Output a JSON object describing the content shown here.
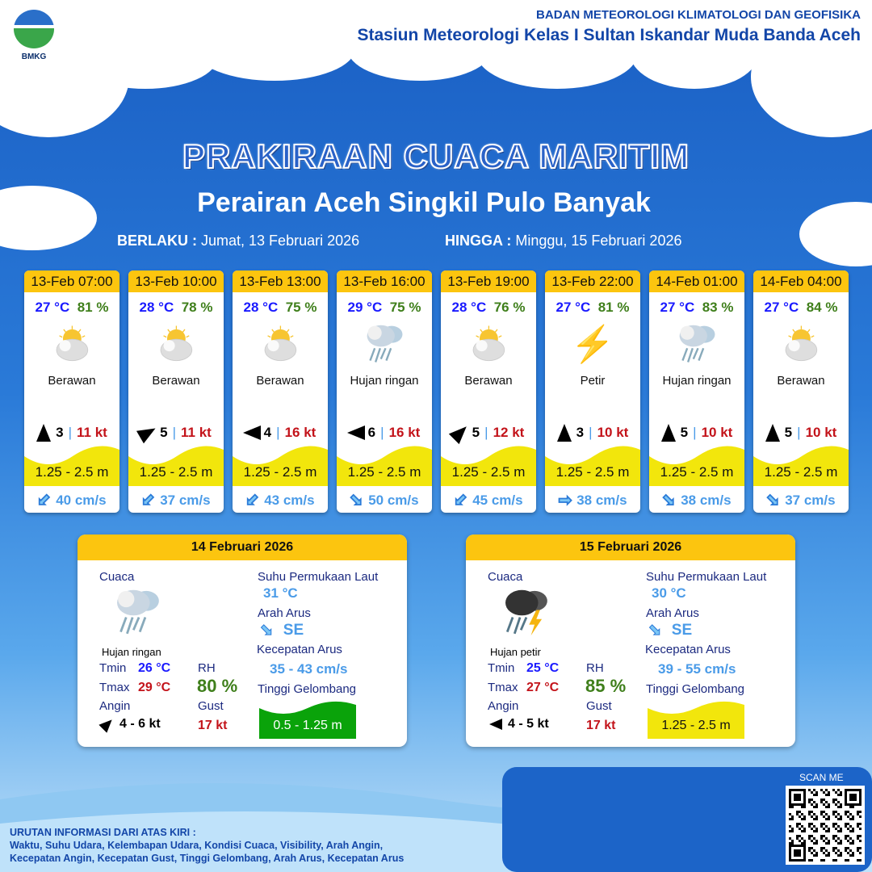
{
  "header": {
    "logo_text": "BMKG",
    "org": "BADAN METEOROLOGI KLIMATOLOGI DAN GEOFISIKA",
    "station": "Stasiun Meteorologi Kelas I Sultan Iskandar Muda Banda Aceh"
  },
  "title": "PRAKIRAAN CUACA MARITIM",
  "subtitle": "Perairan Aceh Singkil Pulo Banyak",
  "validity": {
    "from_label": "BERLAKU :",
    "from": "Jumat, 13 Februari 2026",
    "to_label": "HINGGA :",
    "to": "Minggu, 15 Februari 2026"
  },
  "colors": {
    "header_yellow": "#fcc50f",
    "wave_yellow": "#f2e60c",
    "wave_green": "#0aa30a",
    "temp": "#1a1aff",
    "rh": "#3f7f1b",
    "gust": "#c3131a"
  },
  "forecasts": [
    {
      "time": "13-Feb 07:00",
      "temp": "27 °C",
      "rh": "81 %",
      "icon": "partly-cloudy-icon",
      "cond": "Berawan",
      "wind_dir_deg": 180,
      "wind": "3",
      "gust": "11 kt",
      "wave": "1.25 - 2.5 m",
      "cur_dir_deg": 225,
      "current": "40 cm/s"
    },
    {
      "time": "13-Feb 10:00",
      "temp": "28 °C",
      "rh": "78 %",
      "icon": "partly-cloudy-icon",
      "cond": "Berawan",
      "wind_dir_deg": 240,
      "wind": "5",
      "gust": "11 kt",
      "wave": "1.25 - 2.5 m",
      "cur_dir_deg": 225,
      "current": "37 cm/s"
    },
    {
      "time": "13-Feb 13:00",
      "temp": "28 °C",
      "rh": "75 %",
      "icon": "partly-cloudy-icon",
      "cond": "Berawan",
      "wind_dir_deg": 90,
      "wind": "4",
      "gust": "16 kt",
      "wave": "1.25 - 2.5 m",
      "cur_dir_deg": 225,
      "current": "43 cm/s"
    },
    {
      "time": "13-Feb 16:00",
      "temp": "29 °C",
      "rh": "75 %",
      "icon": "light-rain-icon",
      "cond": "Hujan ringan",
      "wind_dir_deg": 90,
      "wind": "6",
      "gust": "16 kt",
      "wave": "1.25 - 2.5 m",
      "cur_dir_deg": 135,
      "current": "50 cm/s"
    },
    {
      "time": "13-Feb 19:00",
      "temp": "28 °C",
      "rh": "76 %",
      "icon": "partly-cloudy-icon",
      "cond": "Berawan",
      "wind_dir_deg": 225,
      "wind": "5",
      "gust": "12 kt",
      "wave": "1.25 - 2.5 m",
      "cur_dir_deg": 225,
      "current": "45 cm/s"
    },
    {
      "time": "13-Feb 22:00",
      "temp": "27 °C",
      "rh": "81 %",
      "icon": "lightning-icon",
      "cond": "Petir",
      "wind_dir_deg": 180,
      "wind": "3",
      "gust": "10 kt",
      "wave": "1.25 - 2.5 m",
      "cur_dir_deg": 90,
      "current": "38 cm/s"
    },
    {
      "time": "14-Feb 01:00",
      "temp": "27 °C",
      "rh": "83 %",
      "icon": "light-rain-icon",
      "cond": "Hujan ringan",
      "wind_dir_deg": 180,
      "wind": "5",
      "gust": "10 kt",
      "wave": "1.25 - 2.5 m",
      "cur_dir_deg": 135,
      "current": "38 cm/s"
    },
    {
      "time": "14-Feb 04:00",
      "temp": "27 °C",
      "rh": "84 %",
      "icon": "partly-cloudy-icon",
      "cond": "Berawan",
      "wind_dir_deg": 180,
      "wind": "5",
      "gust": "10 kt",
      "wave": "1.25 - 2.5 m",
      "cur_dir_deg": 135,
      "current": "37 cm/s"
    }
  ],
  "labels": {
    "cuaca": "Cuaca",
    "sst": "Suhu Permukaan Laut",
    "arah": "Arah Arus",
    "kec": "Kecepatan Arus",
    "tinggi": "Tinggi Gelombang",
    "tmin": "Tmin",
    "tmax": "Tmax",
    "rh": "RH",
    "angin": "Angin",
    "gust": "Gust"
  },
  "daily": [
    {
      "date": "14 Februari 2026",
      "icon": "light-rain-icon",
      "cond": "Hujan ringan",
      "tmin": "26 °C",
      "tmax": "29 °C",
      "rh": "80 %",
      "wind_dir_deg": 225,
      "wind": "4  - 6 kt",
      "gust": "17 kt",
      "sst": "31 °C",
      "cur_dir_deg": 135,
      "cur_dir": "SE",
      "cur_speed": "35  - 43 cm/s",
      "wave": "0.5 - 1.25 m",
      "wave_color": "#0aa30a",
      "wave_text": "#ffffff"
    },
    {
      "date": "15 Februari 2026",
      "icon": "thunderstorm-icon",
      "cond": "Hujan petir",
      "tmin": "25 °C",
      "tmax": "27 °C",
      "rh": "85 %",
      "wind_dir_deg": 90,
      "wind": "4  - 5 kt",
      "gust": "17 kt",
      "sst": "30 °C",
      "cur_dir_deg": 135,
      "cur_dir": "SE",
      "cur_speed": "39  -  55 cm/s",
      "wave": "1.25 - 2.5 m",
      "wave_color": "#f2e60c",
      "wave_text": "#111111"
    }
  ],
  "footer": {
    "legend_title": "URUTAN INFORMASI DARI ATAS KIRI :",
    "legend_line1": "Waktu, Suhu Udara, Kelembapan Udara, Kondisi Cuaca, Visibility, Arah Angin,",
    "legend_line2": "Kecepatan Angin, Kecepatan Gust, Tinggi Gelombang, Arah Arus, Kecepatan Arus",
    "scan": "SCAN ME"
  }
}
